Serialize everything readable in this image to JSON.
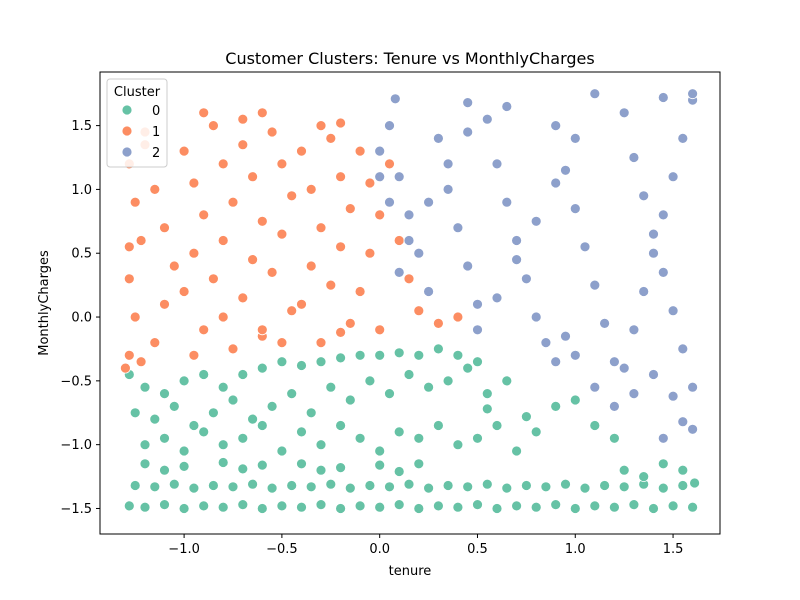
{
  "chart_data": {
    "type": "scatter",
    "title": "Customer Clusters: Tenure vs MonthlyCharges",
    "xlabel": "tenure",
    "ylabel": "MonthlyCharges",
    "xlim": [
      -1.43,
      1.74
    ],
    "ylim": [
      -1.7,
      1.92
    ],
    "x_ticks": [
      -1.0,
      -0.5,
      0.0,
      0.5,
      1.0,
      1.5
    ],
    "x_tick_labels": [
      "−1.0",
      "−0.5",
      "0.0",
      "0.5",
      "1.0",
      "1.5"
    ],
    "y_ticks": [
      -1.5,
      -1.0,
      -0.5,
      0.0,
      0.5,
      1.0,
      1.5
    ],
    "y_tick_labels": [
      "−1.5",
      "−1.0",
      "−0.5",
      "0.0",
      "0.5",
      "1.0",
      "1.5"
    ],
    "grid": false,
    "legend": {
      "title": "Cluster",
      "placement": "top-left",
      "entries": [
        "0",
        "1",
        "2"
      ]
    },
    "series": [
      {
        "name": "0",
        "color": "#66c2a5",
        "points": [
          [
            -1.28,
            -1.48
          ],
          [
            -1.2,
            -1.49
          ],
          [
            -1.1,
            -1.47
          ],
          [
            -1.0,
            -1.5
          ],
          [
            -0.9,
            -1.48
          ],
          [
            -0.8,
            -1.49
          ],
          [
            -0.7,
            -1.47
          ],
          [
            -0.6,
            -1.5
          ],
          [
            -0.5,
            -1.48
          ],
          [
            -0.4,
            -1.49
          ],
          [
            -0.3,
            -1.47
          ],
          [
            -0.2,
            -1.5
          ],
          [
            -0.1,
            -1.48
          ],
          [
            0.0,
            -1.49
          ],
          [
            0.1,
            -1.47
          ],
          [
            0.2,
            -1.5
          ],
          [
            0.3,
            -1.48
          ],
          [
            0.4,
            -1.49
          ],
          [
            0.5,
            -1.47
          ],
          [
            0.6,
            -1.5
          ],
          [
            0.7,
            -1.48
          ],
          [
            0.8,
            -1.49
          ],
          [
            0.9,
            -1.47
          ],
          [
            1.0,
            -1.5
          ],
          [
            1.1,
            -1.48
          ],
          [
            1.2,
            -1.49
          ],
          [
            1.3,
            -1.47
          ],
          [
            1.4,
            -1.5
          ],
          [
            1.5,
            -1.48
          ],
          [
            1.6,
            -1.49
          ],
          [
            -1.25,
            -1.32
          ],
          [
            -1.15,
            -1.33
          ],
          [
            -1.05,
            -1.31
          ],
          [
            -0.95,
            -1.34
          ],
          [
            -0.85,
            -1.32
          ],
          [
            -0.75,
            -1.33
          ],
          [
            -0.65,
            -1.31
          ],
          [
            -0.55,
            -1.34
          ],
          [
            -0.45,
            -1.32
          ],
          [
            -0.35,
            -1.33
          ],
          [
            -0.25,
            -1.31
          ],
          [
            -0.15,
            -1.34
          ],
          [
            -0.05,
            -1.32
          ],
          [
            0.05,
            -1.33
          ],
          [
            0.15,
            -1.31
          ],
          [
            0.25,
            -1.34
          ],
          [
            0.35,
            -1.32
          ],
          [
            0.45,
            -1.33
          ],
          [
            0.55,
            -1.31
          ],
          [
            0.65,
            -1.34
          ],
          [
            0.75,
            -1.32
          ],
          [
            0.85,
            -1.33
          ],
          [
            0.95,
            -1.31
          ],
          [
            1.05,
            -1.34
          ],
          [
            1.15,
            -1.32
          ],
          [
            1.25,
            -1.33
          ],
          [
            1.35,
            -1.31
          ],
          [
            1.45,
            -1.34
          ],
          [
            1.55,
            -1.32
          ],
          [
            1.61,
            -1.3
          ],
          [
            -1.2,
            -1.15
          ],
          [
            -1.0,
            -1.17
          ],
          [
            -0.8,
            -1.14
          ],
          [
            -0.6,
            -1.16
          ],
          [
            -0.4,
            -1.15
          ],
          [
            -0.2,
            -1.18
          ],
          [
            0.0,
            -1.16
          ],
          [
            0.2,
            -1.15
          ],
          [
            -1.1,
            -1.2
          ],
          [
            -0.7,
            -1.19
          ],
          [
            -0.3,
            -1.2
          ],
          [
            0.1,
            -1.21
          ],
          [
            -1.28,
            -0.45
          ],
          [
            -1.2,
            -0.55
          ],
          [
            -1.1,
            -0.6
          ],
          [
            -1.0,
            -0.5
          ],
          [
            -0.9,
            -0.45
          ],
          [
            -0.8,
            -0.55
          ],
          [
            -0.7,
            -0.45
          ],
          [
            -0.6,
            -0.4
          ],
          [
            -0.5,
            -0.35
          ],
          [
            -0.4,
            -0.38
          ],
          [
            -0.3,
            -0.35
          ],
          [
            -0.2,
            -0.32
          ],
          [
            -0.1,
            -0.3
          ],
          [
            0.0,
            -0.3
          ],
          [
            0.1,
            -0.28
          ],
          [
            0.2,
            -0.3
          ],
          [
            0.3,
            -0.25
          ],
          [
            0.4,
            -0.3
          ],
          [
            0.5,
            -0.35
          ],
          [
            -1.25,
            -0.75
          ],
          [
            -1.15,
            -0.8
          ],
          [
            -1.05,
            -0.7
          ],
          [
            -0.95,
            -0.85
          ],
          [
            -0.85,
            -0.75
          ],
          [
            -0.75,
            -0.65
          ],
          [
            -0.65,
            -0.8
          ],
          [
            -0.55,
            -0.7
          ],
          [
            -0.45,
            -0.6
          ],
          [
            -0.35,
            -0.75
          ],
          [
            -0.25,
            -0.55
          ],
          [
            -0.15,
            -0.65
          ],
          [
            -0.05,
            -0.5
          ],
          [
            0.05,
            -0.6
          ],
          [
            0.15,
            -0.45
          ],
          [
            0.25,
            -0.55
          ],
          [
            0.35,
            -0.5
          ],
          [
            0.45,
            -0.4
          ],
          [
            0.55,
            -0.6
          ],
          [
            0.65,
            -0.5
          ],
          [
            -1.2,
            -1.0
          ],
          [
            -1.1,
            -0.95
          ],
          [
            -1.0,
            -1.05
          ],
          [
            -0.9,
            -0.9
          ],
          [
            -0.8,
            -1.0
          ],
          [
            -0.7,
            -0.95
          ],
          [
            -0.6,
            -0.85
          ],
          [
            -0.5,
            -1.05
          ],
          [
            -0.4,
            -0.9
          ],
          [
            -0.3,
            -1.0
          ],
          [
            -0.2,
            -0.85
          ],
          [
            -0.1,
            -0.95
          ],
          [
            0.0,
            -1.05
          ],
          [
            0.1,
            -0.9
          ],
          [
            0.2,
            -0.95
          ],
          [
            0.3,
            -0.85
          ],
          [
            0.4,
            -1.0
          ],
          [
            0.5,
            -0.95
          ],
          [
            0.6,
            -0.85
          ],
          [
            0.7,
            -1.05
          ],
          [
            0.8,
            -0.9
          ],
          [
            0.9,
            -0.7
          ],
          [
            1.0,
            -0.65
          ],
          [
            1.1,
            -0.85
          ],
          [
            1.2,
            -0.95
          ],
          [
            0.55,
            -0.72
          ],
          [
            0.75,
            -0.78
          ],
          [
            1.25,
            -1.2
          ],
          [
            1.35,
            -1.25
          ],
          [
            1.45,
            -1.15
          ],
          [
            1.55,
            -1.2
          ]
        ]
      },
      {
        "name": "1",
        "color": "#fc8d62",
        "points": [
          [
            -1.28,
            1.2
          ],
          [
            -1.25,
            0.9
          ],
          [
            -1.22,
            0.6
          ],
          [
            -1.28,
            0.3
          ],
          [
            -1.25,
            0.0
          ],
          [
            -1.28,
            -0.3
          ],
          [
            -1.2,
            1.35
          ],
          [
            -1.15,
            1.0
          ],
          [
            -1.1,
            0.7
          ],
          [
            -1.05,
            0.4
          ],
          [
            -1.1,
            0.1
          ],
          [
            -1.15,
            -0.2
          ],
          [
            -1.0,
            1.3
          ],
          [
            -0.95,
            1.05
          ],
          [
            -0.9,
            0.8
          ],
          [
            -0.95,
            0.5
          ],
          [
            -1.0,
            0.2
          ],
          [
            -0.9,
            -0.1
          ],
          [
            -0.85,
            1.5
          ],
          [
            -0.8,
            1.2
          ],
          [
            -0.75,
            0.9
          ],
          [
            -0.8,
            0.6
          ],
          [
            -0.85,
            0.3
          ],
          [
            -0.8,
            0.0
          ],
          [
            -0.75,
            -0.25
          ],
          [
            -0.7,
            1.35
          ],
          [
            -0.65,
            1.1
          ],
          [
            -0.6,
            0.75
          ],
          [
            -0.65,
            0.45
          ],
          [
            -0.7,
            0.15
          ],
          [
            -0.6,
            -0.15
          ],
          [
            -0.55,
            1.45
          ],
          [
            -0.5,
            1.2
          ],
          [
            -0.45,
            0.95
          ],
          [
            -0.5,
            0.65
          ],
          [
            -0.55,
            0.35
          ],
          [
            -0.45,
            0.05
          ],
          [
            -0.5,
            -0.2
          ],
          [
            -0.4,
            1.3
          ],
          [
            -0.35,
            1.0
          ],
          [
            -0.3,
            0.7
          ],
          [
            -0.35,
            0.4
          ],
          [
            -0.4,
            0.1
          ],
          [
            -0.3,
            -0.2
          ],
          [
            -0.25,
            1.4
          ],
          [
            -0.2,
            1.1
          ],
          [
            -0.15,
            0.85
          ],
          [
            -0.2,
            0.55
          ],
          [
            -0.25,
            0.25
          ],
          [
            -0.15,
            -0.05
          ],
          [
            -0.1,
            1.3
          ],
          [
            -0.05,
            1.05
          ],
          [
            0.0,
            0.8
          ],
          [
            -0.05,
            0.5
          ],
          [
            -0.1,
            0.2
          ],
          [
            0.0,
            -0.1
          ],
          [
            0.05,
            1.2
          ],
          [
            0.05,
            0.9
          ],
          [
            0.1,
            0.6
          ],
          [
            0.15,
            0.3
          ],
          [
            0.2,
            0.05
          ],
          [
            0.3,
            -0.05
          ],
          [
            0.4,
            0.0
          ],
          [
            -0.9,
            1.6
          ],
          [
            -0.7,
            1.55
          ],
          [
            -0.6,
            1.6
          ],
          [
            -0.3,
            1.5
          ],
          [
            -0.2,
            1.52
          ],
          [
            -1.2,
            1.45
          ],
          [
            -1.28,
            0.55
          ],
          [
            -1.3,
            -0.4
          ],
          [
            -1.22,
            -0.35
          ],
          [
            -0.95,
            -0.3
          ],
          [
            -0.6,
            -0.1
          ],
          [
            -0.2,
            -0.12
          ]
        ]
      },
      {
        "name": "2",
        "color": "#8da0cb",
        "points": [
          [
            0.0,
            1.3
          ],
          [
            0.05,
            1.5
          ],
          [
            0.1,
            1.1
          ],
          [
            0.15,
            0.8
          ],
          [
            0.2,
            0.5
          ],
          [
            0.25,
            0.2
          ],
          [
            0.3,
            1.4
          ],
          [
            0.35,
            1.0
          ],
          [
            0.4,
            0.7
          ],
          [
            0.45,
            0.4
          ],
          [
            0.5,
            0.1
          ],
          [
            0.55,
            1.55
          ],
          [
            0.6,
            1.2
          ],
          [
            0.65,
            0.9
          ],
          [
            0.7,
            0.6
          ],
          [
            0.75,
            0.3
          ],
          [
            0.8,
            0.0
          ],
          [
            0.85,
            -0.2
          ],
          [
            0.9,
            1.5
          ],
          [
            0.95,
            1.15
          ],
          [
            1.0,
            0.85
          ],
          [
            1.05,
            0.55
          ],
          [
            1.1,
            0.25
          ],
          [
            1.15,
            -0.05
          ],
          [
            1.2,
            -0.35
          ],
          [
            1.25,
            1.6
          ],
          [
            1.3,
            1.25
          ],
          [
            1.35,
            0.95
          ],
          [
            1.4,
            0.65
          ],
          [
            1.45,
            0.35
          ],
          [
            1.5,
            0.05
          ],
          [
            1.55,
            -0.25
          ],
          [
            1.6,
            -0.55
          ],
          [
            1.6,
            1.7
          ],
          [
            1.55,
            1.4
          ],
          [
            1.5,
            1.1
          ],
          [
            1.45,
            0.8
          ],
          [
            1.4,
            0.5
          ],
          [
            1.35,
            0.2
          ],
          [
            1.3,
            -0.1
          ],
          [
            1.25,
            -0.4
          ],
          [
            1.2,
            -0.7
          ],
          [
            1.1,
            1.75
          ],
          [
            1.0,
            1.4
          ],
          [
            0.9,
            1.05
          ],
          [
            0.8,
            0.75
          ],
          [
            0.7,
            0.45
          ],
          [
            0.6,
            0.15
          ],
          [
            0.5,
            -0.1
          ],
          [
            0.45,
            1.45
          ],
          [
            0.35,
            1.2
          ],
          [
            0.25,
            0.9
          ],
          [
            0.15,
            0.6
          ],
          [
            0.1,
            0.35
          ],
          [
            0.05,
            0.9
          ],
          [
            0.0,
            1.1
          ],
          [
            1.45,
            -0.95
          ],
          [
            1.6,
            -0.88
          ],
          [
            1.3,
            -0.6
          ],
          [
            1.1,
            -0.55
          ],
          [
            1.0,
            -0.3
          ],
          [
            0.9,
            -0.35
          ],
          [
            1.6,
            1.75
          ],
          [
            1.45,
            1.72
          ],
          [
            0.65,
            1.65
          ],
          [
            0.45,
            1.68
          ],
          [
            0.08,
            1.71
          ],
          [
            1.5,
            -0.62
          ],
          [
            1.55,
            -0.82
          ],
          [
            1.4,
            -0.45
          ],
          [
            0.95,
            -0.15
          ]
        ]
      }
    ]
  }
}
